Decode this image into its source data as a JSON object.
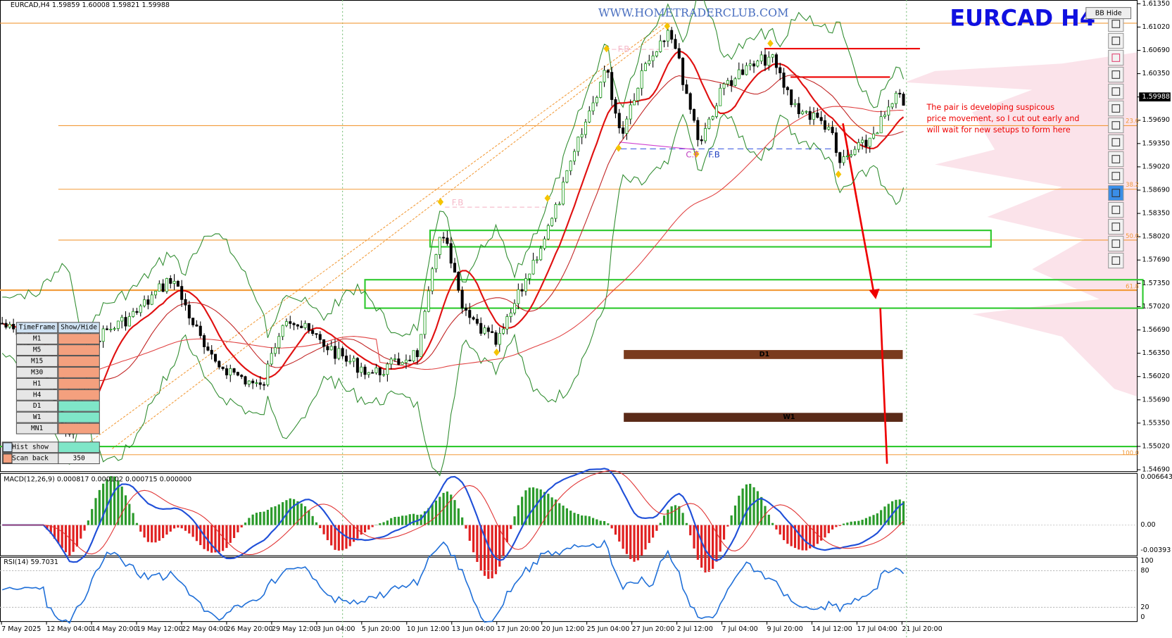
{
  "header": {
    "symbol_info": "EURCAD,H4 1.59859 1.60008 1.59821 1.59988",
    "website": "WWW.HOMETRADERCLUB.COM",
    "title": "EURCAD H4",
    "bb_button": "BB Hide"
  },
  "annotation": [
    "The pair is developing suspicous",
    "price movement, so I cut out early and",
    "will wait for new setups to form here"
  ],
  "price_axis": [
    "1.61350",
    "1.61020",
    "1.60690",
    "1.60350",
    "1.59988",
    "1.59690",
    "1.59350",
    "1.59020",
    "1.58690",
    "1.58350",
    "1.58020",
    "1.57690",
    "1.57350",
    "1.57020",
    "1.56690",
    "1.56350",
    "1.56020",
    "1.55690",
    "1.55350",
    "1.55020",
    "1.54690"
  ],
  "fib_levels": [
    "23.6",
    "38.2",
    "50.0",
    "61.8",
    "100.0"
  ],
  "zones": [
    "D1",
    "W1"
  ],
  "pattern_labels": [
    "F.B",
    "F.B",
    "C.F",
    "F.B"
  ],
  "time_axis": [
    "7 May 2025",
    "12 May 04:00",
    "14 May 20:00",
    "19 May 12:00",
    "22 May 04:00",
    "26 May 20:00",
    "29 May 12:00",
    "3 Jun 04:00",
    "5 Jun 20:00",
    "10 Jun 12:00",
    "13 Jun 04:00",
    "17 Jun 20:00",
    "20 Jun 12:00",
    "25 Jun 04:00",
    "27 Jun 20:00",
    "2 Jul 12:00",
    "7 Jul 04:00",
    "9 Jul 20:00",
    "14 Jul 12:00",
    "17 Jul 04:00",
    "21 Jul 20:00"
  ],
  "macd": {
    "header": "MACD(12,26,9) 0.000817 0.000102 0.000715 0.000000",
    "axis": [
      "0.006643",
      "0.00",
      "-0.00393"
    ]
  },
  "rsi": {
    "header": "RSI(14) 59.7031",
    "axis": [
      "100",
      "80",
      "20",
      "0"
    ]
  },
  "timeframe_panel": {
    "headers": [
      "TimeFrame",
      "Show/Hide"
    ],
    "rows": [
      "M1",
      "M5",
      "M15",
      "M30",
      "H1",
      "H4",
      "D1",
      "W1",
      "MN1"
    ],
    "hist_show": "Hist show",
    "scan_back": "Scan back",
    "scan_value": "350"
  }
}
